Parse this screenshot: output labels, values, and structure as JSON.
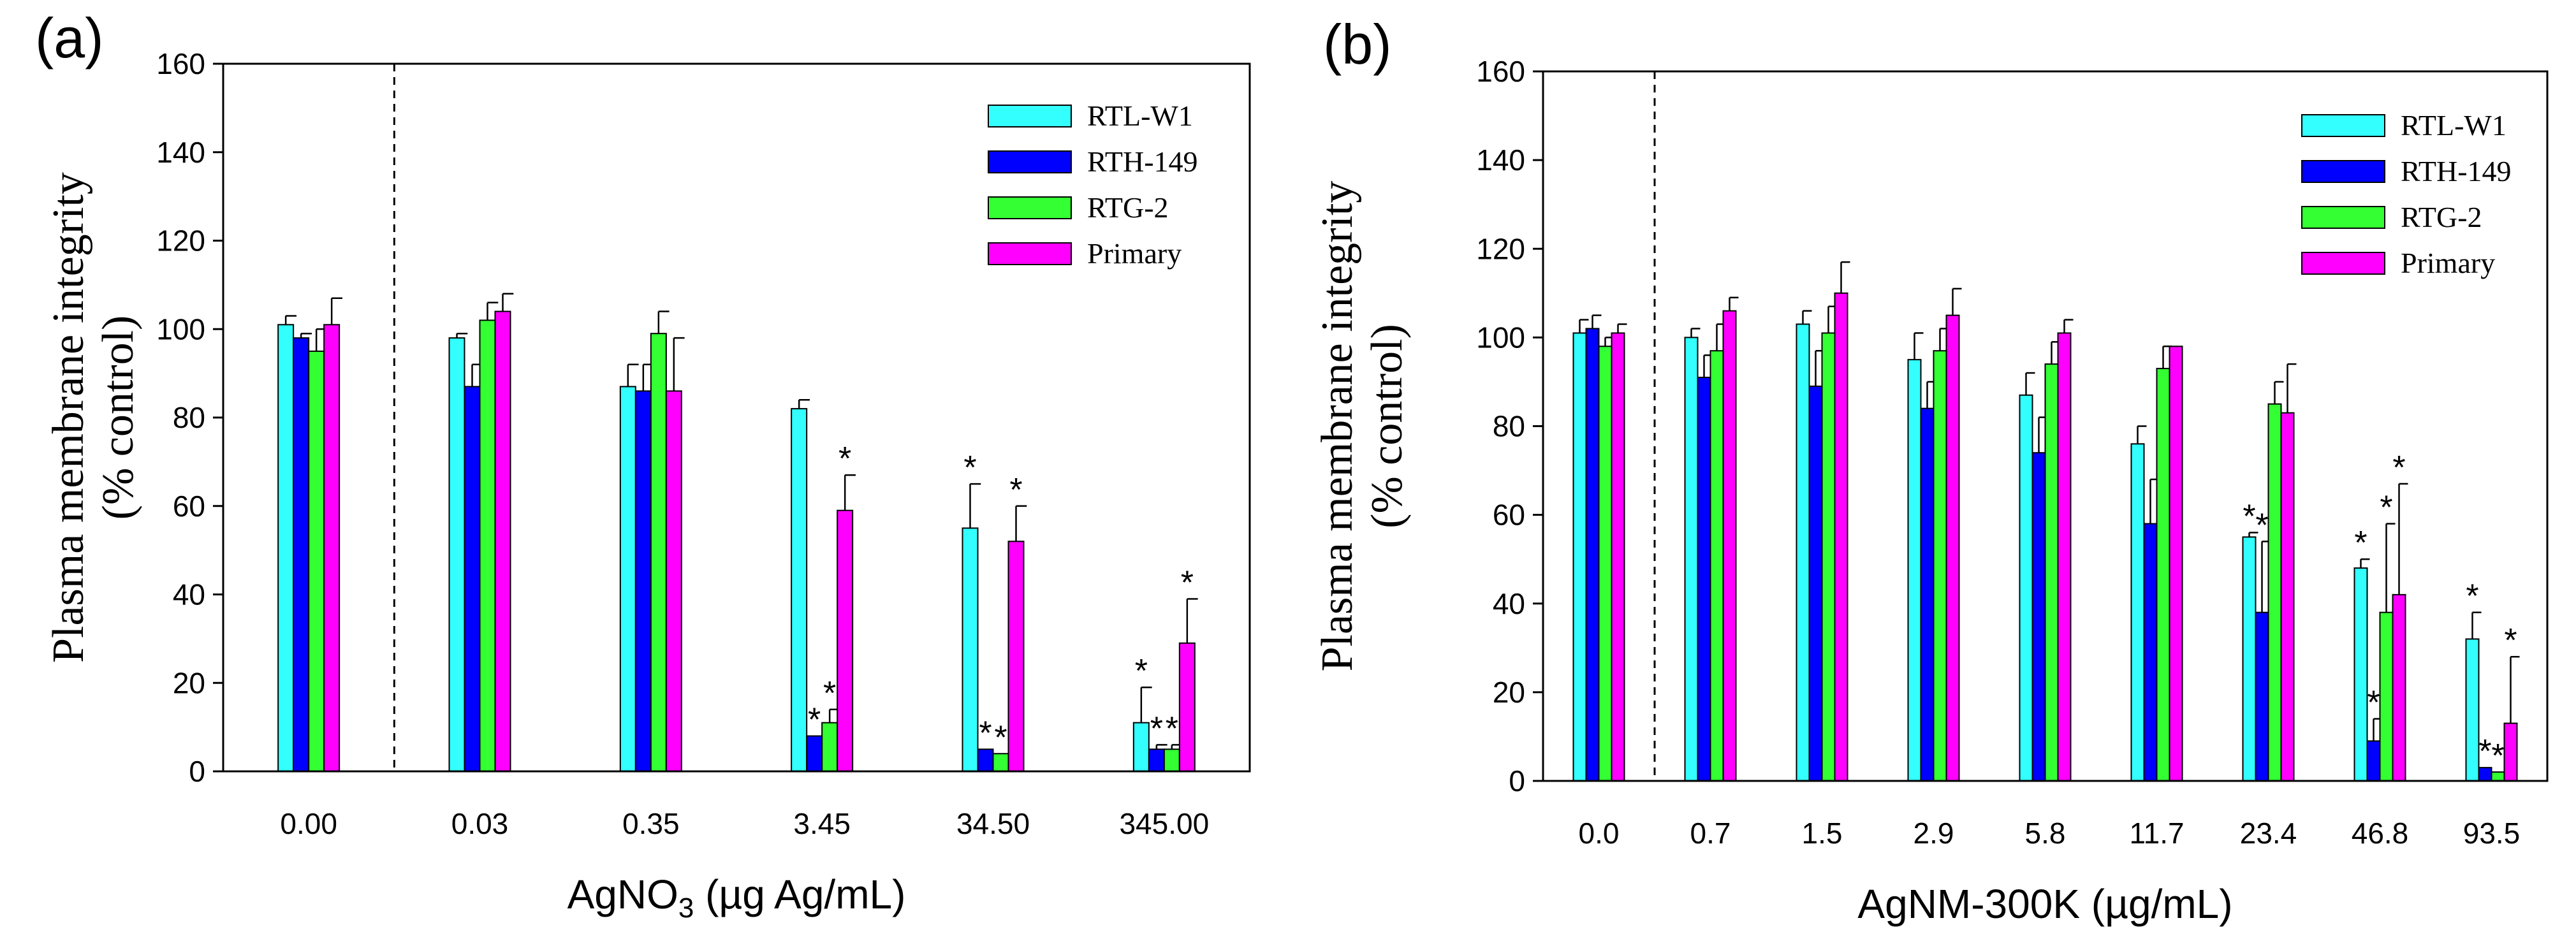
{
  "colors": {
    "RTL-W1": "#33ffff",
    "RTH-149": "#0000ff",
    "RTG-2": "#33ff33",
    "Primary": "#ff00ff"
  },
  "chart_data": [
    {
      "panel": "(a)",
      "type": "bar",
      "ylabel": [
        "Plasma membrane integrity",
        "(% control)"
      ],
      "xlabel": {
        "main": "AgNO",
        "sub": "3",
        "unit": " (µg Ag/mL)"
      },
      "ylim": [
        0,
        160
      ],
      "yticks": [
        0,
        20,
        40,
        60,
        80,
        100,
        120,
        140,
        160
      ],
      "legend_position": "top-right",
      "categories": [
        "0.00",
        "0.03",
        "0.35",
        "3.45",
        "34.50",
        "345.00"
      ],
      "divider_after_index": 0,
      "series": [
        {
          "name": "RTL-W1",
          "values": [
            101,
            98,
            87,
            82,
            55,
            11
          ],
          "errors": [
            2,
            1,
            5,
            2,
            10,
            8
          ],
          "sig": [
            false,
            false,
            false,
            false,
            true,
            true
          ]
        },
        {
          "name": "RTH-149",
          "values": [
            98,
            87,
            86,
            8,
            5,
            5
          ],
          "errors": [
            1,
            5,
            6,
            0,
            0,
            1
          ],
          "sig": [
            false,
            false,
            false,
            true,
            true,
            true
          ]
        },
        {
          "name": "RTG-2",
          "values": [
            95,
            102,
            99,
            11,
            4,
            5
          ],
          "errors": [
            5,
            4,
            5,
            3,
            0,
            1
          ],
          "sig": [
            false,
            false,
            false,
            true,
            true,
            true
          ]
        },
        {
          "name": "Primary",
          "values": [
            101,
            104,
            86,
            59,
            52,
            29
          ],
          "errors": [
            6,
            4,
            12,
            8,
            8,
            10
          ],
          "sig": [
            false,
            false,
            false,
            true,
            true,
            true
          ]
        }
      ]
    },
    {
      "panel": "(b)",
      "type": "bar",
      "ylabel": [
        "Plasma membrane integrity",
        "(% control)"
      ],
      "xlabel": {
        "main": "AgNM-300K (µg/mL)",
        "sub": "",
        "unit": ""
      },
      "ylim": [
        0,
        160
      ],
      "yticks": [
        0,
        20,
        40,
        60,
        80,
        100,
        120,
        140,
        160
      ],
      "legend_position": "top-right",
      "categories": [
        "0.0",
        "0.7",
        "1.5",
        "2.9",
        "5.8",
        "11.7",
        "23.4",
        "46.8",
        "93.5"
      ],
      "divider_after_index": 0,
      "series": [
        {
          "name": "RTL-W1",
          "values": [
            101,
            100,
            103,
            95,
            87,
            76,
            55,
            48,
            32
          ],
          "errors": [
            3,
            2,
            3,
            6,
            5,
            4,
            1,
            2,
            6
          ],
          "sig": [
            false,
            false,
            false,
            false,
            false,
            false,
            true,
            true,
            true
          ]
        },
        {
          "name": "RTH-149",
          "values": [
            102,
            91,
            89,
            84,
            74,
            58,
            38,
            9,
            3
          ],
          "errors": [
            3,
            5,
            8,
            6,
            8,
            10,
            16,
            5,
            0
          ],
          "sig": [
            false,
            false,
            false,
            false,
            false,
            false,
            true,
            true,
            true
          ]
        },
        {
          "name": "RTG-2",
          "values": [
            98,
            97,
            101,
            97,
            94,
            93,
            85,
            38,
            2
          ],
          "errors": [
            2,
            6,
            6,
            5,
            5,
            5,
            5,
            20,
            0
          ],
          "sig": [
            false,
            false,
            false,
            false,
            false,
            false,
            false,
            true,
            true
          ]
        },
        {
          "name": "Primary",
          "values": [
            101,
            106,
            110,
            105,
            101,
            98,
            83,
            42,
            13
          ],
          "errors": [
            2,
            3,
            7,
            6,
            3,
            0,
            11,
            25,
            15
          ],
          "sig": [
            false,
            false,
            false,
            false,
            false,
            false,
            false,
            true,
            true
          ]
        }
      ]
    }
  ]
}
